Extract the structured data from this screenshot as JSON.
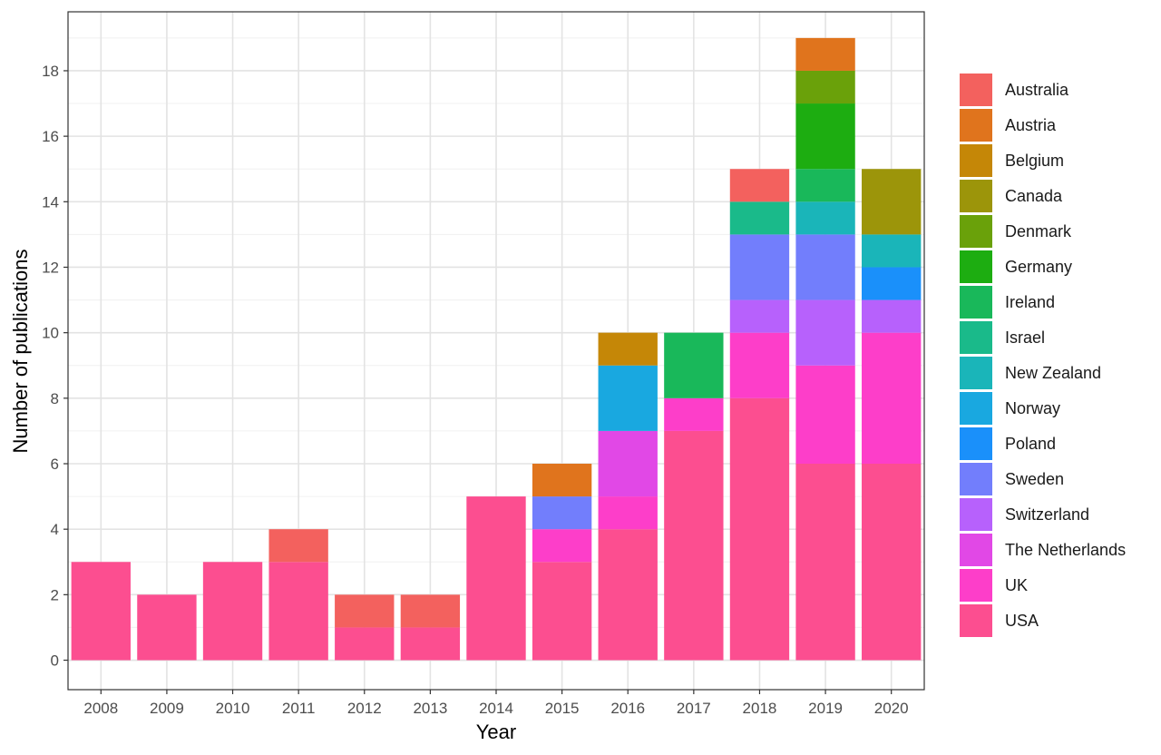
{
  "chart_data": {
    "type": "bar",
    "stacked": true,
    "title": "",
    "xlabel": "Year",
    "ylabel": "Number of publications",
    "categories": [
      "2008",
      "2009",
      "2010",
      "2011",
      "2012",
      "2013",
      "2014",
      "2015",
      "2016",
      "2017",
      "2018",
      "2019",
      "2020"
    ],
    "ylim": [
      -0.9,
      19.8
    ],
    "yticks": [
      0,
      2,
      4,
      6,
      8,
      10,
      12,
      14,
      16,
      18
    ],
    "grid": true,
    "legend_position": "right",
    "series": [
      {
        "name": "USA",
        "color": "#FC4E90",
        "values": [
          3,
          2,
          3,
          3,
          1,
          1,
          5,
          3,
          4,
          7,
          8,
          6,
          6
        ]
      },
      {
        "name": "UK",
        "color": "#FD3EC9",
        "values": [
          0,
          0,
          0,
          0,
          0,
          0,
          0,
          1,
          1,
          1,
          2,
          3,
          4
        ]
      },
      {
        "name": "The Netherlands",
        "color": "#E148E6",
        "values": [
          0,
          0,
          0,
          0,
          0,
          0,
          0,
          0,
          2,
          0,
          0,
          0,
          0
        ]
      },
      {
        "name": "Switzerland",
        "color": "#B761FC",
        "values": [
          0,
          0,
          0,
          0,
          0,
          0,
          0,
          0,
          0,
          0,
          1,
          2,
          1
        ]
      },
      {
        "name": "Sweden",
        "color": "#727EFC",
        "values": [
          0,
          0,
          0,
          0,
          0,
          0,
          0,
          1,
          0,
          0,
          2,
          2,
          0
        ]
      },
      {
        "name": "Poland",
        "color": "#1A90FA",
        "values": [
          0,
          0,
          0,
          0,
          0,
          0,
          0,
          0,
          0,
          0,
          0,
          0,
          1
        ]
      },
      {
        "name": "Norway",
        "color": "#19A8E0",
        "values": [
          0,
          0,
          0,
          0,
          0,
          0,
          0,
          0,
          2,
          0,
          0,
          0,
          0
        ]
      },
      {
        "name": "New Zealand",
        "color": "#1AB5B9",
        "values": [
          0,
          0,
          0,
          0,
          0,
          0,
          0,
          0,
          0,
          0,
          0,
          1,
          1
        ]
      },
      {
        "name": "Israel",
        "color": "#1ABA8A",
        "values": [
          0,
          0,
          0,
          0,
          0,
          0,
          0,
          0,
          0,
          0,
          1,
          0,
          0
        ]
      },
      {
        "name": "Ireland",
        "color": "#19B85A",
        "values": [
          0,
          0,
          0,
          0,
          0,
          0,
          0,
          0,
          0,
          2,
          0,
          1,
          0
        ]
      },
      {
        "name": "Germany",
        "color": "#1DAD11",
        "values": [
          0,
          0,
          0,
          0,
          0,
          0,
          0,
          0,
          0,
          0,
          0,
          2,
          0
        ]
      },
      {
        "name": "Denmark",
        "color": "#6AA10A",
        "values": [
          0,
          0,
          0,
          0,
          0,
          0,
          0,
          0,
          0,
          0,
          0,
          1,
          0
        ]
      },
      {
        "name": "Canada",
        "color": "#9C950A",
        "values": [
          0,
          0,
          0,
          0,
          0,
          0,
          0,
          0,
          0,
          0,
          0,
          0,
          2
        ]
      },
      {
        "name": "Belgium",
        "color": "#C58707",
        "values": [
          0,
          0,
          0,
          0,
          0,
          0,
          0,
          0,
          1,
          0,
          0,
          0,
          0
        ]
      },
      {
        "name": "Austria",
        "color": "#E0741D",
        "values": [
          0,
          0,
          0,
          0,
          0,
          0,
          0,
          1,
          0,
          0,
          0,
          1,
          0
        ]
      },
      {
        "name": "Australia",
        "color": "#F3615E",
        "values": [
          0,
          0,
          0,
          1,
          1,
          1,
          0,
          0,
          0,
          0,
          1,
          0,
          0
        ]
      }
    ],
    "legend_order": [
      "Australia",
      "Austria",
      "Belgium",
      "Canada",
      "Denmark",
      "Germany",
      "Ireland",
      "Israel",
      "New Zealand",
      "Norway",
      "Poland",
      "Sweden",
      "Switzerland",
      "The Netherlands",
      "UK",
      "USA"
    ]
  }
}
